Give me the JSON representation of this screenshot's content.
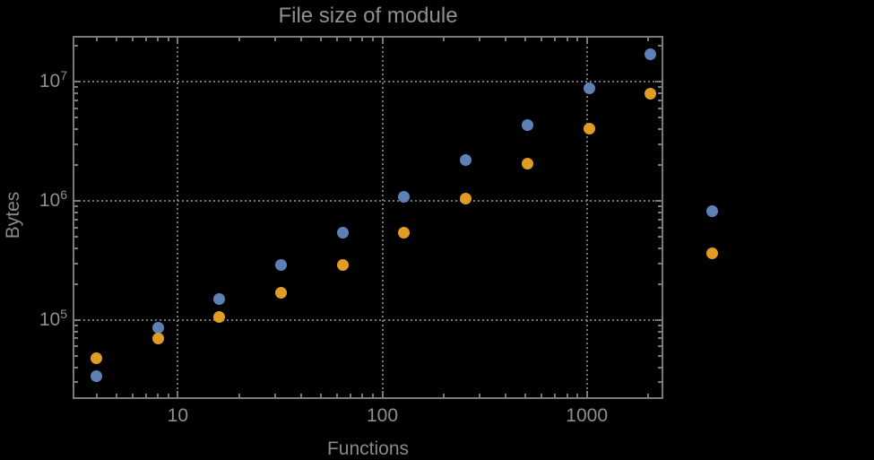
{
  "chart_data": {
    "type": "scatter",
    "title": "File size of module",
    "xlabel": "Functions",
    "ylabel": "Bytes",
    "xscale": "log",
    "yscale": "log",
    "xlim": [
      3.06,
      2366
    ],
    "ylim": [
      21700,
      24400000
    ],
    "grid": "dotted gray lines at major ticks, frame on all four sides, inward ticks",
    "legend": "none",
    "x_ticks": [
      {
        "v": 10,
        "label": "10"
      },
      {
        "v": 100,
        "label": "100"
      },
      {
        "v": 1000,
        "label": "1000"
      }
    ],
    "y_ticks": [
      {
        "v": 100000,
        "base": "10",
        "exp": "5"
      },
      {
        "v": 1000000,
        "base": "10",
        "exp": "6"
      },
      {
        "v": 10000000,
        "base": "10",
        "exp": "7"
      }
    ],
    "clip_points_to_frame": false,
    "marker_diameter_px": 13,
    "style": {
      "background": "#000000",
      "frame_color": "#7a7a7a",
      "grid_color": "#767676",
      "text_color": "#8f8f8f",
      "title_color": "#8f8f8f"
    },
    "series": [
      {
        "key": "blue",
        "color": "#5e81b5",
        "points": [
          [
            4,
            34000
          ],
          [
            8,
            86000
          ],
          [
            16,
            151000
          ],
          [
            32,
            288000
          ],
          [
            64,
            544000
          ],
          [
            128,
            1090000
          ],
          [
            256,
            2220000
          ],
          [
            512,
            4380000
          ],
          [
            1024,
            8770000
          ],
          [
            2048,
            17000000
          ],
          [
            4096,
            820000
          ]
        ]
      },
      {
        "key": "orange",
        "color": "#e19c24",
        "points": [
          [
            4,
            48000
          ],
          [
            8,
            70000
          ],
          [
            16,
            107000
          ],
          [
            32,
            169000
          ],
          [
            64,
            288000
          ],
          [
            128,
            538000
          ],
          [
            256,
            1040000
          ],
          [
            512,
            2050000
          ],
          [
            1024,
            4060000
          ],
          [
            2048,
            8040000
          ],
          [
            4096,
            363000
          ]
        ]
      }
    ]
  }
}
